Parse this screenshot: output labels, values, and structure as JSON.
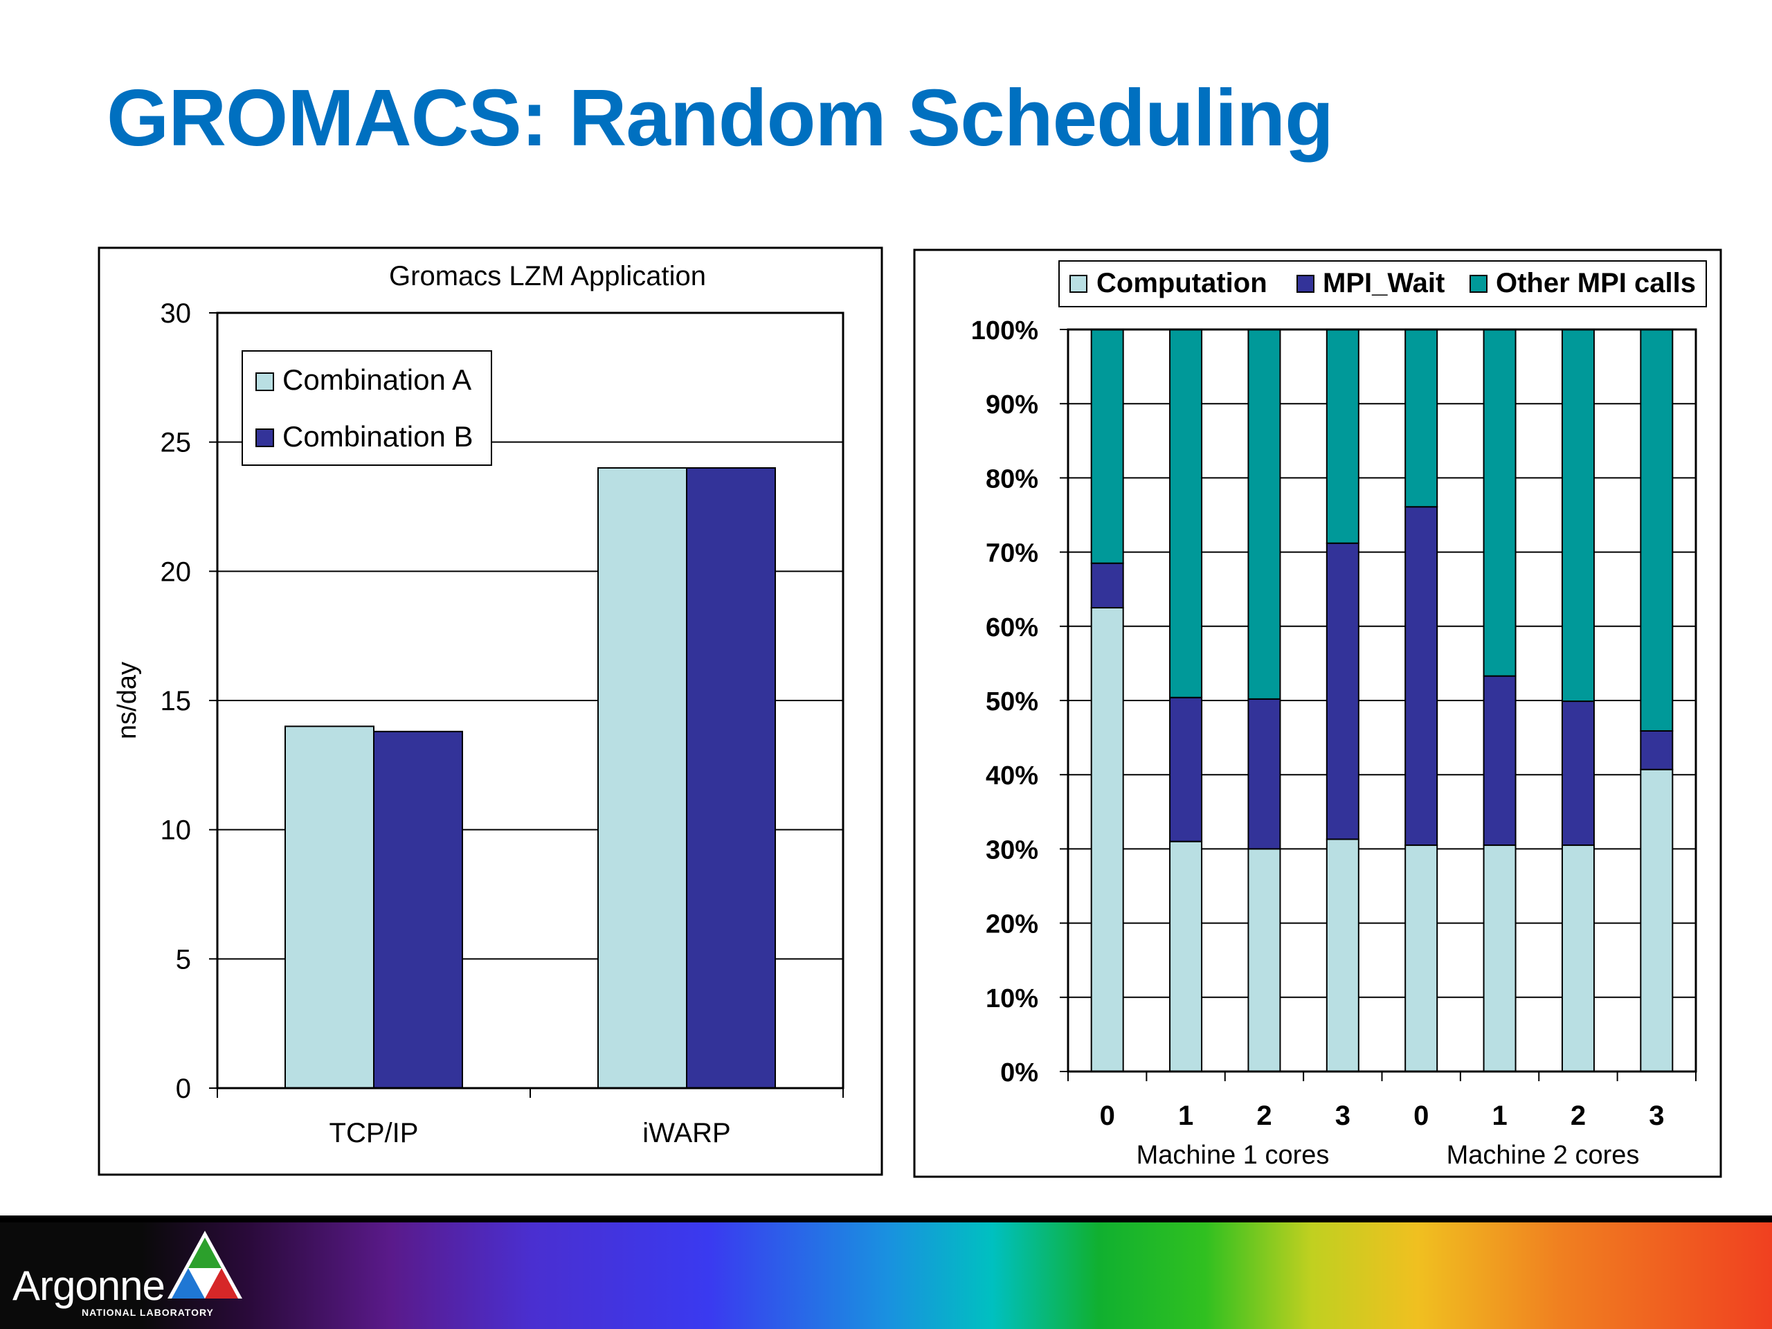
{
  "slide": {
    "title": "GROMACS: Random Scheduling"
  },
  "logo": {
    "name": "Argonne",
    "subtitle": "NATIONAL LABORATORY"
  },
  "colors": {
    "title": "#0070C0",
    "light_blue": "#B9DFE3",
    "navy": "#333399",
    "teal": "#009999"
  },
  "chart_data": [
    {
      "type": "bar",
      "title": "Gromacs LZM Application",
      "xlabel": "",
      "ylabel": "ns/day",
      "ylim": [
        0,
        30
      ],
      "yticks": [
        0,
        5,
        10,
        15,
        20,
        25,
        30
      ],
      "grid": true,
      "legend": "top-left",
      "categories": [
        "TCP/IP",
        "iWARP"
      ],
      "series": [
        {
          "name": "Combination A",
          "values": [
            14.0,
            24.0
          ],
          "color": "#B9DFE3"
        },
        {
          "name": "Combination B",
          "values": [
            13.8,
            24.0
          ],
          "color": "#333399"
        }
      ]
    },
    {
      "type": "bar",
      "stacked": true,
      "title": "",
      "xlabel": "",
      "ylabel": "",
      "ylim": [
        0,
        100
      ],
      "yticks": [
        "0%",
        "10%",
        "20%",
        "30%",
        "40%",
        "50%",
        "60%",
        "70%",
        "80%",
        "90%",
        "100%"
      ],
      "grid": true,
      "legend": "top",
      "categories": [
        "0",
        "1",
        "2",
        "3",
        "0",
        "1",
        "2",
        "3"
      ],
      "groups": [
        "Machine 1 cores",
        "Machine 2 cores"
      ],
      "series": [
        {
          "name": "Computation",
          "values": [
            62.5,
            31,
            30,
            31.3,
            30.5,
            30.5,
            30.5,
            40.7
          ],
          "color": "#B9DFE3"
        },
        {
          "name": "MPI_Wait",
          "values": [
            6,
            19.4,
            20.2,
            39.9,
            45.6,
            22.8,
            19.4,
            5.2
          ],
          "color": "#333399"
        },
        {
          "name": "Other MPI calls",
          "values": [
            31.5,
            49.6,
            49.8,
            28.8,
            23.9,
            46.7,
            50.1,
            54.1
          ],
          "color": "#009999"
        }
      ]
    }
  ]
}
